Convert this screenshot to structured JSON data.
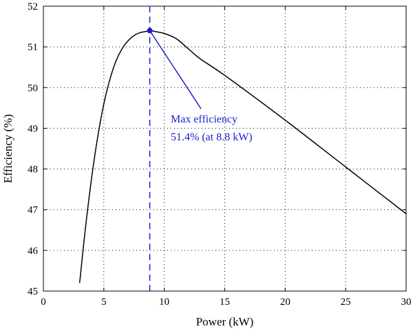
{
  "chart_data": {
    "type": "line",
    "title": "",
    "xlabel": "Power (kW)",
    "ylabel": "Efficiency (%)",
    "xlim": [
      0,
      30
    ],
    "ylim": [
      45,
      52
    ],
    "xticks": [
      0,
      5,
      10,
      15,
      20,
      25,
      30
    ],
    "yticks": [
      45,
      46,
      47,
      48,
      49,
      50,
      51,
      52
    ],
    "grid": true,
    "series": [
      {
        "color": "#000000",
        "x": [
          3.0,
          3.5,
          4.0,
          4.5,
          5.0,
          5.5,
          6.0,
          6.5,
          7.0,
          7.5,
          8.0,
          8.5,
          8.8,
          9.2,
          10.0,
          11.0,
          12.0,
          13.0,
          15.0,
          20.0,
          25.0,
          30.0
        ],
        "y": [
          45.2,
          46.6,
          47.8,
          48.8,
          49.6,
          50.2,
          50.65,
          50.95,
          51.15,
          51.28,
          51.35,
          51.38,
          51.4,
          51.38,
          51.33,
          51.2,
          50.95,
          50.7,
          50.3,
          49.2,
          48.05,
          46.9
        ]
      }
    ],
    "max_point": {
      "x": 8.8,
      "y": 51.4
    },
    "annotation": {
      "line1": "Max efficiency",
      "line2": "51.4% (at 8.8 kW)",
      "color": "#1a1ad6"
    }
  }
}
